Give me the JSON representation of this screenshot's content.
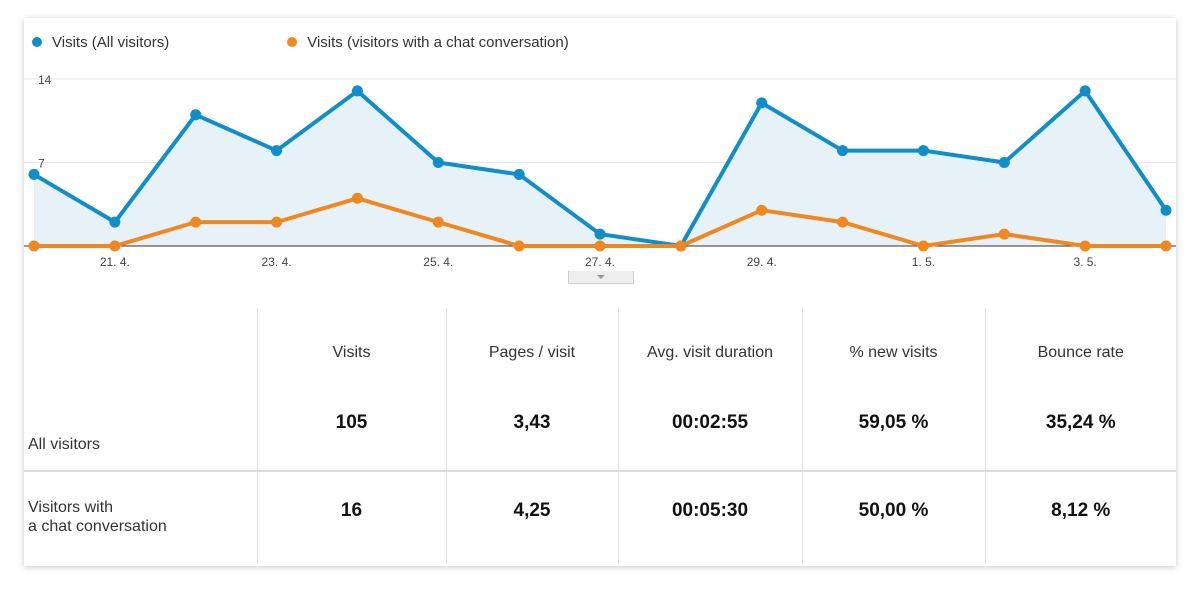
{
  "legend": {
    "series_a": {
      "label": "Visits (All visitors)",
      "color": "#0f8ec9"
    },
    "series_b": {
      "label": "Visits (visitors with a chat conversation)",
      "color": "#f0871f"
    }
  },
  "chart_data": {
    "type": "area",
    "x_ticks": [
      "21. 4.",
      "23. 4.",
      "25. 4.",
      "27. 4.",
      "29. 4.",
      "1. 5.",
      "3. 5."
    ],
    "y_ticks": [
      "7",
      "14"
    ],
    "ylim": [
      0,
      14
    ],
    "grid": true,
    "legend_position": "top-left",
    "x": [
      "20. 4.",
      "21. 4.",
      "22. 4.",
      "23. 4.",
      "24. 4.",
      "25. 4.",
      "26. 4.",
      "27. 4.",
      "28. 4.",
      "29. 4.",
      "30. 4.",
      "1. 5.",
      "2. 5.",
      "3. 5.",
      "4. 5."
    ],
    "series": [
      {
        "name": "Visits (All visitors)",
        "color": "#0f8ec9",
        "values": [
          6,
          2,
          11,
          8,
          13,
          7,
          6,
          1,
          0,
          12,
          8,
          8,
          7,
          13,
          3
        ]
      },
      {
        "name": "Visits (visitors with a chat conversation)",
        "color": "#f0871f",
        "values": [
          0,
          0,
          2,
          2,
          4,
          2,
          0,
          0,
          0,
          3,
          2,
          0,
          1,
          0,
          0
        ]
      }
    ]
  },
  "table": {
    "headers": [
      "Visits",
      "Pages / visit",
      "Avg. visit duration",
      "% new visits",
      "Bounce rate"
    ],
    "rows": [
      {
        "label": "All visitors",
        "values": [
          "105",
          "3,43",
          "00:02:55",
          "59,05 %",
          "35,24 %"
        ]
      },
      {
        "label": "Visitors with\na chat conversation",
        "values": [
          "16",
          "4,25",
          "00:05:30",
          "50,00 %",
          "8,12 %"
        ]
      }
    ]
  }
}
